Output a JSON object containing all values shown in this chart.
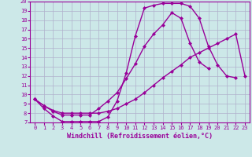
{
  "background_color": "#cce8e8",
  "grid_color": "#b0b0cc",
  "line_color": "#990099",
  "title": "Windchill (Refroidissement éolien,°C)",
  "xlim": [
    -0.5,
    23.5
  ],
  "ylim": [
    7,
    20
  ],
  "xticks": [
    0,
    1,
    2,
    3,
    4,
    5,
    6,
    7,
    8,
    9,
    10,
    11,
    12,
    13,
    14,
    15,
    16,
    17,
    18,
    19,
    20,
    21,
    22,
    23
  ],
  "yticks": [
    7,
    8,
    9,
    10,
    11,
    12,
    13,
    14,
    15,
    16,
    17,
    18,
    19,
    20
  ],
  "line1_x": [
    0,
    1,
    2,
    3,
    4,
    5,
    6,
    7,
    8,
    9,
    10,
    11,
    12,
    13,
    14,
    15,
    16,
    17,
    18,
    19,
    20,
    21,
    22
  ],
  "line1_y": [
    9.5,
    8.5,
    7.7,
    7.1,
    7.1,
    7.1,
    7.1,
    7.1,
    7.6,
    9.3,
    12.3,
    16.3,
    19.3,
    19.6,
    19.8,
    19.8,
    19.8,
    19.5,
    18.2,
    15.2,
    13.2,
    12.0,
    11.8
  ],
  "line2_x": [
    0,
    1,
    2,
    3,
    4,
    5,
    6,
    7,
    8,
    9,
    10,
    11,
    12,
    13,
    14,
    15,
    16,
    17,
    18,
    19,
    20,
    21,
    22
  ],
  "line2_y": [
    9.5,
    8.8,
    8.2,
    7.8,
    7.8,
    7.8,
    7.8,
    8.5,
    9.3,
    10.2,
    11.7,
    13.3,
    15.2,
    16.5,
    17.5,
    18.8,
    18.2,
    15.5,
    13.5,
    12.8,
    null,
    null,
    null
  ],
  "line3_x": [
    0,
    1,
    2,
    3,
    4,
    5,
    6,
    7,
    8,
    9,
    10,
    11,
    12,
    13,
    14,
    15,
    16,
    17,
    18,
    19,
    20,
    21,
    22,
    23
  ],
  "line3_y": [
    9.5,
    8.8,
    8.3,
    8.0,
    8.0,
    8.0,
    8.0,
    8.0,
    8.2,
    8.5,
    9.0,
    9.5,
    10.2,
    11.0,
    11.8,
    12.5,
    13.2,
    14.0,
    14.5,
    15.0,
    15.5,
    16.0,
    16.5,
    12.0
  ],
  "marker": "D",
  "marker_size": 2,
  "linewidth": 1.0,
  "xlabel_fontsize": 6,
  "tick_fontsize": 5,
  "figsize": [
    3.2,
    2.0
  ],
  "dpi": 100
}
